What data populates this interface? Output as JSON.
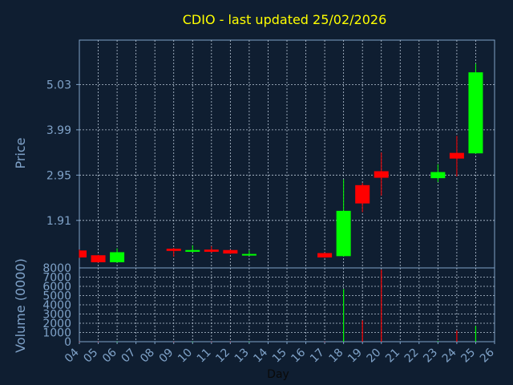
{
  "header": {
    "title": "CDIO - last updated 25/02/2026"
  },
  "theme": {
    "background": "#0f1e31",
    "title_color": "#ffff00",
    "axis_text": "#7fa2c8",
    "grid": "#b8c6d6",
    "up": "#00ff00",
    "down": "#ff0000"
  },
  "chart_data": [
    {
      "type": "candlestick",
      "xlabel": "Day",
      "ylabel": "Price",
      "ylim": [
        0.82,
        6.05
      ],
      "yticks": [
        "1.91",
        "2.95",
        "3.99",
        "5.03"
      ],
      "xlim": [
        4,
        26
      ],
      "grid": true,
      "candles": [
        {
          "day": 4,
          "open": 1.22,
          "close": 1.06,
          "high": 1.24,
          "low": 1.05
        },
        {
          "day": 5,
          "open": 1.11,
          "close": 0.95,
          "high": 1.12,
          "low": 0.94
        },
        {
          "day": 6,
          "open": 0.95,
          "close": 1.18,
          "high": 1.27,
          "low": 0.94
        },
        {
          "day": 9,
          "open": 1.26,
          "close": 1.21,
          "high": 1.28,
          "low": 1.08
        },
        {
          "day": 10,
          "open": 1.19,
          "close": 1.23,
          "high": 1.34,
          "low": 1.18
        },
        {
          "day": 11,
          "open": 1.24,
          "close": 1.19,
          "high": 1.32,
          "low": 1.17
        },
        {
          "day": 12,
          "open": 1.23,
          "close": 1.15,
          "high": 1.24,
          "low": 1.14
        },
        {
          "day": 13,
          "open": 1.12,
          "close": 1.14,
          "high": 1.22,
          "low": 1.11
        },
        {
          "day": 17,
          "open": 1.16,
          "close": 1.06,
          "high": 1.17,
          "low": 1.05
        },
        {
          "day": 18,
          "open": 1.09,
          "close": 2.13,
          "high": 2.85,
          "low": 1.08
        },
        {
          "day": 19,
          "open": 2.72,
          "close": 2.3,
          "high": 2.77,
          "low": 2.1
        },
        {
          "day": 20,
          "open": 3.04,
          "close": 2.89,
          "high": 3.47,
          "low": 2.48
        },
        {
          "day": 23,
          "open": 2.88,
          "close": 3.02,
          "high": 3.2,
          "low": 2.79
        },
        {
          "day": 24,
          "open": 3.46,
          "close": 3.33,
          "high": 3.85,
          "low": 2.92
        },
        {
          "day": 25,
          "open": 3.45,
          "close": 5.31,
          "high": 5.51,
          "low": 3.44
        }
      ]
    },
    {
      "type": "bar",
      "xlabel": "Day",
      "ylabel": "Volume (0000)",
      "ylim": [
        0,
        8000
      ],
      "yticks": [
        "0",
        "1000",
        "2000",
        "3000",
        "4000",
        "5000",
        "6000",
        "7000",
        "8000"
      ],
      "xticks": [
        "04",
        "05",
        "06",
        "07",
        "08",
        "09",
        "10",
        "11",
        "12",
        "13",
        "14",
        "15",
        "16",
        "17",
        "18",
        "19",
        "20",
        "21",
        "22",
        "23",
        "24",
        "25",
        "26"
      ],
      "bars": [
        {
          "day": 4,
          "value": 10,
          "color": "down"
        },
        {
          "day": 5,
          "value": 10,
          "color": "down"
        },
        {
          "day": 6,
          "value": 10,
          "color": "up"
        },
        {
          "day": 9,
          "value": 10,
          "color": "down"
        },
        {
          "day": 10,
          "value": 10,
          "color": "up"
        },
        {
          "day": 11,
          "value": 10,
          "color": "down"
        },
        {
          "day": 12,
          "value": 10,
          "color": "down"
        },
        {
          "day": 13,
          "value": 10,
          "color": "up"
        },
        {
          "day": 17,
          "value": 10,
          "color": "down"
        },
        {
          "day": 18,
          "value": 5700,
          "color": "up"
        },
        {
          "day": 19,
          "value": 2300,
          "color": "down"
        },
        {
          "day": 20,
          "value": 7800,
          "color": "down"
        },
        {
          "day": 23,
          "value": 60,
          "color": "up"
        },
        {
          "day": 24,
          "value": 1200,
          "color": "down"
        },
        {
          "day": 25,
          "value": 1700,
          "color": "up"
        }
      ]
    }
  ]
}
